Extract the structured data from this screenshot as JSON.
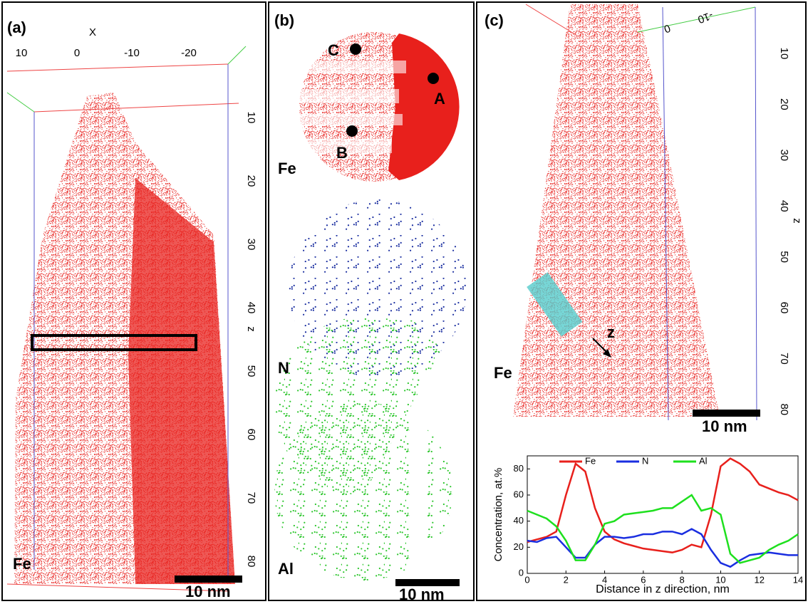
{
  "panels": [
    {
      "label": "(a)",
      "element": "Fe",
      "scale_bar": "10 nm",
      "x_axis_label": "X",
      "x_ticks": [
        "10",
        "0",
        "-10",
        "-20"
      ],
      "z_axis_label": "z",
      "z_ticks": [
        "10",
        "20",
        "30",
        "40",
        "50",
        "60",
        "70",
        "80"
      ]
    },
    {
      "label": "(b)",
      "points": [
        "C",
        "A",
        "B"
      ],
      "maps": [
        "Fe",
        "N",
        "Al"
      ],
      "scale_bar": "10 nm"
    },
    {
      "label": "(c)",
      "element": "Fe",
      "scale_bar": "10 nm",
      "top_ticks": [
        "0",
        "-10"
      ],
      "z_axis_label": "z",
      "z_ticks": [
        "10",
        "20",
        "30",
        "40",
        "50",
        "60",
        "70",
        "80"
      ],
      "arrow_label": "z"
    }
  ],
  "chart_data": {
    "type": "line",
    "x_label": "Distance in z direction, nm",
    "y_label": "Concentration, at.%",
    "x": [
      0,
      0.5,
      1,
      1.5,
      2,
      2.5,
      3,
      3.5,
      4,
      4.5,
      5,
      5.5,
      6,
      6.5,
      7,
      7.5,
      8,
      8.5,
      9,
      9.5,
      10,
      10.5,
      11,
      11.5,
      12,
      12.5,
      13,
      13.5,
      14
    ],
    "series": [
      {
        "name": "Fe",
        "color": "#e8201c",
        "values": [
          24,
          26,
          28,
          32,
          60,
          84,
          78,
          50,
          32,
          26,
          23,
          21,
          19,
          18,
          17,
          16,
          18,
          22,
          20,
          45,
          82,
          88,
          84,
          78,
          68,
          65,
          62,
          60,
          56
        ]
      },
      {
        "name": "N",
        "color": "#1a2ee0",
        "values": [
          25,
          24,
          27,
          28,
          20,
          12,
          12,
          22,
          28,
          28,
          27,
          28,
          30,
          30,
          32,
          32,
          30,
          34,
          30,
          18,
          8,
          5,
          10,
          14,
          15,
          16,
          15,
          14,
          14
        ]
      },
      {
        "name": "Al",
        "color": "#1ee01e",
        "values": [
          48,
          45,
          42,
          36,
          25,
          10,
          10,
          22,
          38,
          40,
          45,
          46,
          47,
          48,
          50,
          50,
          55,
          60,
          48,
          50,
          45,
          15,
          8,
          10,
          12,
          18,
          22,
          25,
          30
        ]
      }
    ],
    "xlim": [
      0,
      14
    ],
    "xticks": [
      0,
      2,
      4,
      6,
      8,
      10,
      12,
      14
    ],
    "ylim": [
      0,
      90
    ],
    "yticks": [
      0,
      20,
      40,
      60,
      80
    ]
  }
}
